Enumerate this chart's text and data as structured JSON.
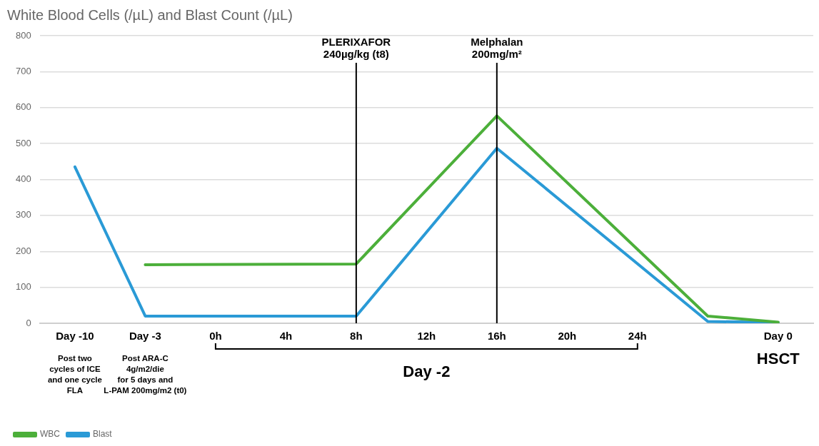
{
  "chart_data": {
    "type": "line",
    "title": "White Blood Cells (/µL) and Blast Count (/µL)",
    "categories": [
      "Day -10",
      "Day -3",
      "0h",
      "4h",
      "8h",
      "12h",
      "16h",
      "20h",
      "24h",
      null,
      "Day 0"
    ],
    "series": [
      {
        "name": "WBC",
        "color": "#4caf3a",
        "values": [
          null,
          163,
          null,
          null,
          165,
          null,
          577,
          null,
          null,
          20,
          3
        ]
      },
      {
        "name": "Blast",
        "color": "#2a9ad6",
        "values": [
          435,
          20,
          null,
          null,
          20,
          null,
          487,
          null,
          null,
          5,
          2
        ]
      }
    ],
    "ylim": [
      0,
      800
    ],
    "yticks": [
      0,
      100,
      200,
      300,
      400,
      500,
      600,
      700,
      800
    ],
    "grid": "y",
    "legend": "bottom left",
    "marker": "none",
    "line_style": "solid",
    "ref_lines": [
      {
        "axis": "x",
        "value": "8h",
        "label": "PLERIXAFOR\n240µg/kg (t8)",
        "color": "#000000"
      },
      {
        "axis": "x",
        "value": "16h",
        "label": "Melphalan\n200mg/m²",
        "color": "#000000"
      }
    ],
    "annotations": [
      "Post two\ncycles of ICE\nand one cycle\nFLA",
      "Post ARA-C\n4g/m2/die\nfor 5 days and\nL-PAM 200mg/m2 (t0)",
      "HSCT",
      "Day -2"
    ]
  }
}
